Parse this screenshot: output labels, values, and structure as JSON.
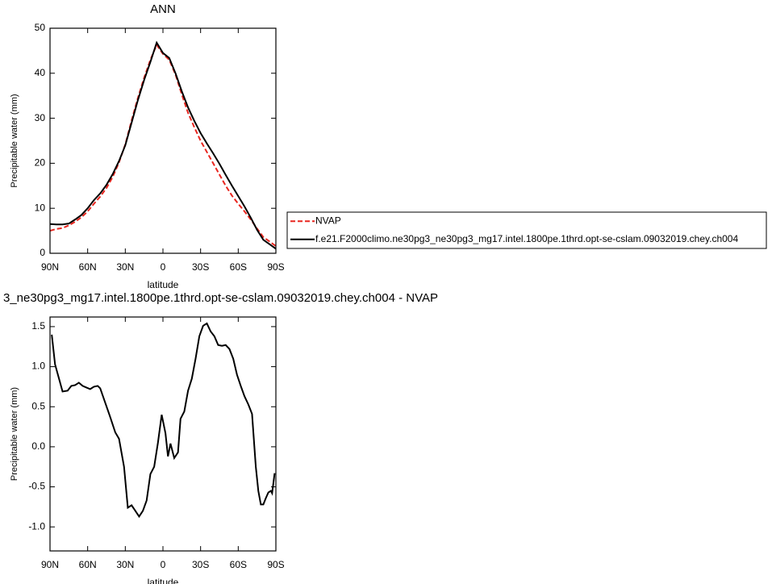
{
  "chart_data": [
    {
      "type": "line",
      "title": "ANN",
      "xlabel": "latitude",
      "ylabel": "Precipitable water (mm)",
      "x": [
        90,
        85,
        80,
        75,
        70,
        65,
        60,
        55,
        50,
        45,
        40,
        35,
        30,
        25,
        20,
        15,
        10,
        5,
        0,
        -5,
        -10,
        -15,
        -20,
        -25,
        -30,
        -35,
        -40,
        -45,
        -50,
        -55,
        -60,
        -65,
        -70,
        -75,
        -80,
        -85,
        -90
      ],
      "series": [
        {
          "name": "NVAP",
          "color": "#e8261f",
          "line_style": "dashed",
          "values": [
            5,
            5.4,
            5.6,
            6.2,
            7,
            8,
            9.3,
            11,
            12.6,
            14.5,
            17,
            20.2,
            24.2,
            29.5,
            34.5,
            39,
            43,
            46.3,
            44.3,
            43,
            39.7,
            35.3,
            31.2,
            28,
            25,
            22.5,
            20,
            17.5,
            15,
            12.8,
            11,
            9.3,
            7.5,
            5.5,
            3.6,
            2.6,
            1.6
          ]
        },
        {
          "name": "f.e21.F2000climo.ne30pg3_ne30pg3_mg17.intel.1800pe.1thrd.opt-se-cslam.09032019.chey.ch004",
          "color": "#000000",
          "line_style": "solid",
          "values": [
            6.5,
            6.4,
            6.4,
            6.6,
            7.5,
            8.5,
            10,
            11.8,
            13.3,
            15.2,
            17.6,
            20.5,
            24,
            29,
            34,
            38.5,
            42.5,
            46.8,
            44.5,
            43.4,
            40,
            36,
            32.4,
            29.4,
            26.7,
            24.4,
            22.2,
            19.9,
            17.4,
            15,
            12.7,
            10.4,
            7.9,
            5.2,
            3,
            2,
            1
          ]
        }
      ],
      "xlim": [
        90,
        -90
      ],
      "xticks": [
        {
          "value": 90,
          "label": "90N"
        },
        {
          "value": 60,
          "label": "60N"
        },
        {
          "value": 30,
          "label": "30N"
        },
        0,
        {
          "value": -30,
          "label": "30S"
        },
        {
          "value": -60,
          "label": "60S"
        },
        {
          "value": -90,
          "label": "90S"
        }
      ],
      "ylim": [
        0,
        50
      ],
      "yticks": [
        0,
        10,
        20,
        30,
        40,
        50
      ],
      "legend": "right"
    },
    {
      "type": "line",
      "title": "3_ne30pg3_mg17.intel.1800pe.1thrd.opt-se-cslam.09032019.chey.ch004 - NVAP",
      "xlabel": "latitude",
      "ylabel": "Precipitable water (mm)",
      "x": [
        88.6,
        86,
        80,
        76,
        73,
        70,
        67,
        64,
        61,
        58,
        55,
        52,
        50,
        46,
        42,
        38,
        35,
        31,
        28,
        25,
        22,
        19,
        16,
        13,
        10,
        7,
        4,
        1,
        -2,
        -4,
        -6,
        -9,
        -12,
        -14,
        -17,
        -20,
        -23,
        -26,
        -29,
        -32,
        -35,
        -38,
        -41,
        -44,
        -47,
        -50,
        -53,
        -56,
        -59,
        -62,
        -65,
        -68,
        -71,
        -74,
        -76,
        -78,
        -80,
        -82,
        -84,
        -86,
        -87,
        -89
      ],
      "values": [
        1.4,
        1.03,
        0.69,
        0.7,
        0.76,
        0.77,
        0.8,
        0.76,
        0.74,
        0.72,
        0.75,
        0.76,
        0.73,
        0.55,
        0.37,
        0.18,
        0.1,
        -0.25,
        -0.76,
        -0.73,
        -0.8,
        -0.87,
        -0.8,
        -0.67,
        -0.34,
        -0.25,
        0.05,
        0.4,
        0.17,
        -0.12,
        0.04,
        -0.14,
        -0.07,
        0.35,
        0.44,
        0.7,
        0.85,
        1.1,
        1.38,
        1.51,
        1.54,
        1.44,
        1.38,
        1.27,
        1.26,
        1.27,
        1.22,
        1.1,
        0.9,
        0.76,
        0.63,
        0.53,
        0.41,
        -0.25,
        -0.55,
        -0.72,
        -0.72,
        -0.64,
        -0.57,
        -0.55,
        -0.58,
        -0.33
      ],
      "color": "#000000",
      "xlim": [
        90,
        -90
      ],
      "xticks": [
        {
          "value": 90,
          "label": "90N"
        },
        {
          "value": 60,
          "label": "60N"
        },
        {
          "value": 30,
          "label": "30N"
        },
        0,
        {
          "value": -30,
          "label": "30S"
        },
        {
          "value": -60,
          "label": "60S"
        },
        {
          "value": -90,
          "label": "90S"
        }
      ],
      "ylim": [
        -1.3,
        1.62
      ],
      "yticks": [
        {
          "value": -1,
          "label": "-1.0"
        },
        {
          "value": -0.5,
          "label": "-0.5"
        },
        {
          "value": 0,
          "label": "0.0"
        },
        {
          "value": 0.5,
          "label": "0.5"
        },
        {
          "value": 1,
          "label": "1.0"
        },
        {
          "value": 1.5,
          "label": "1.5"
        }
      ]
    }
  ]
}
